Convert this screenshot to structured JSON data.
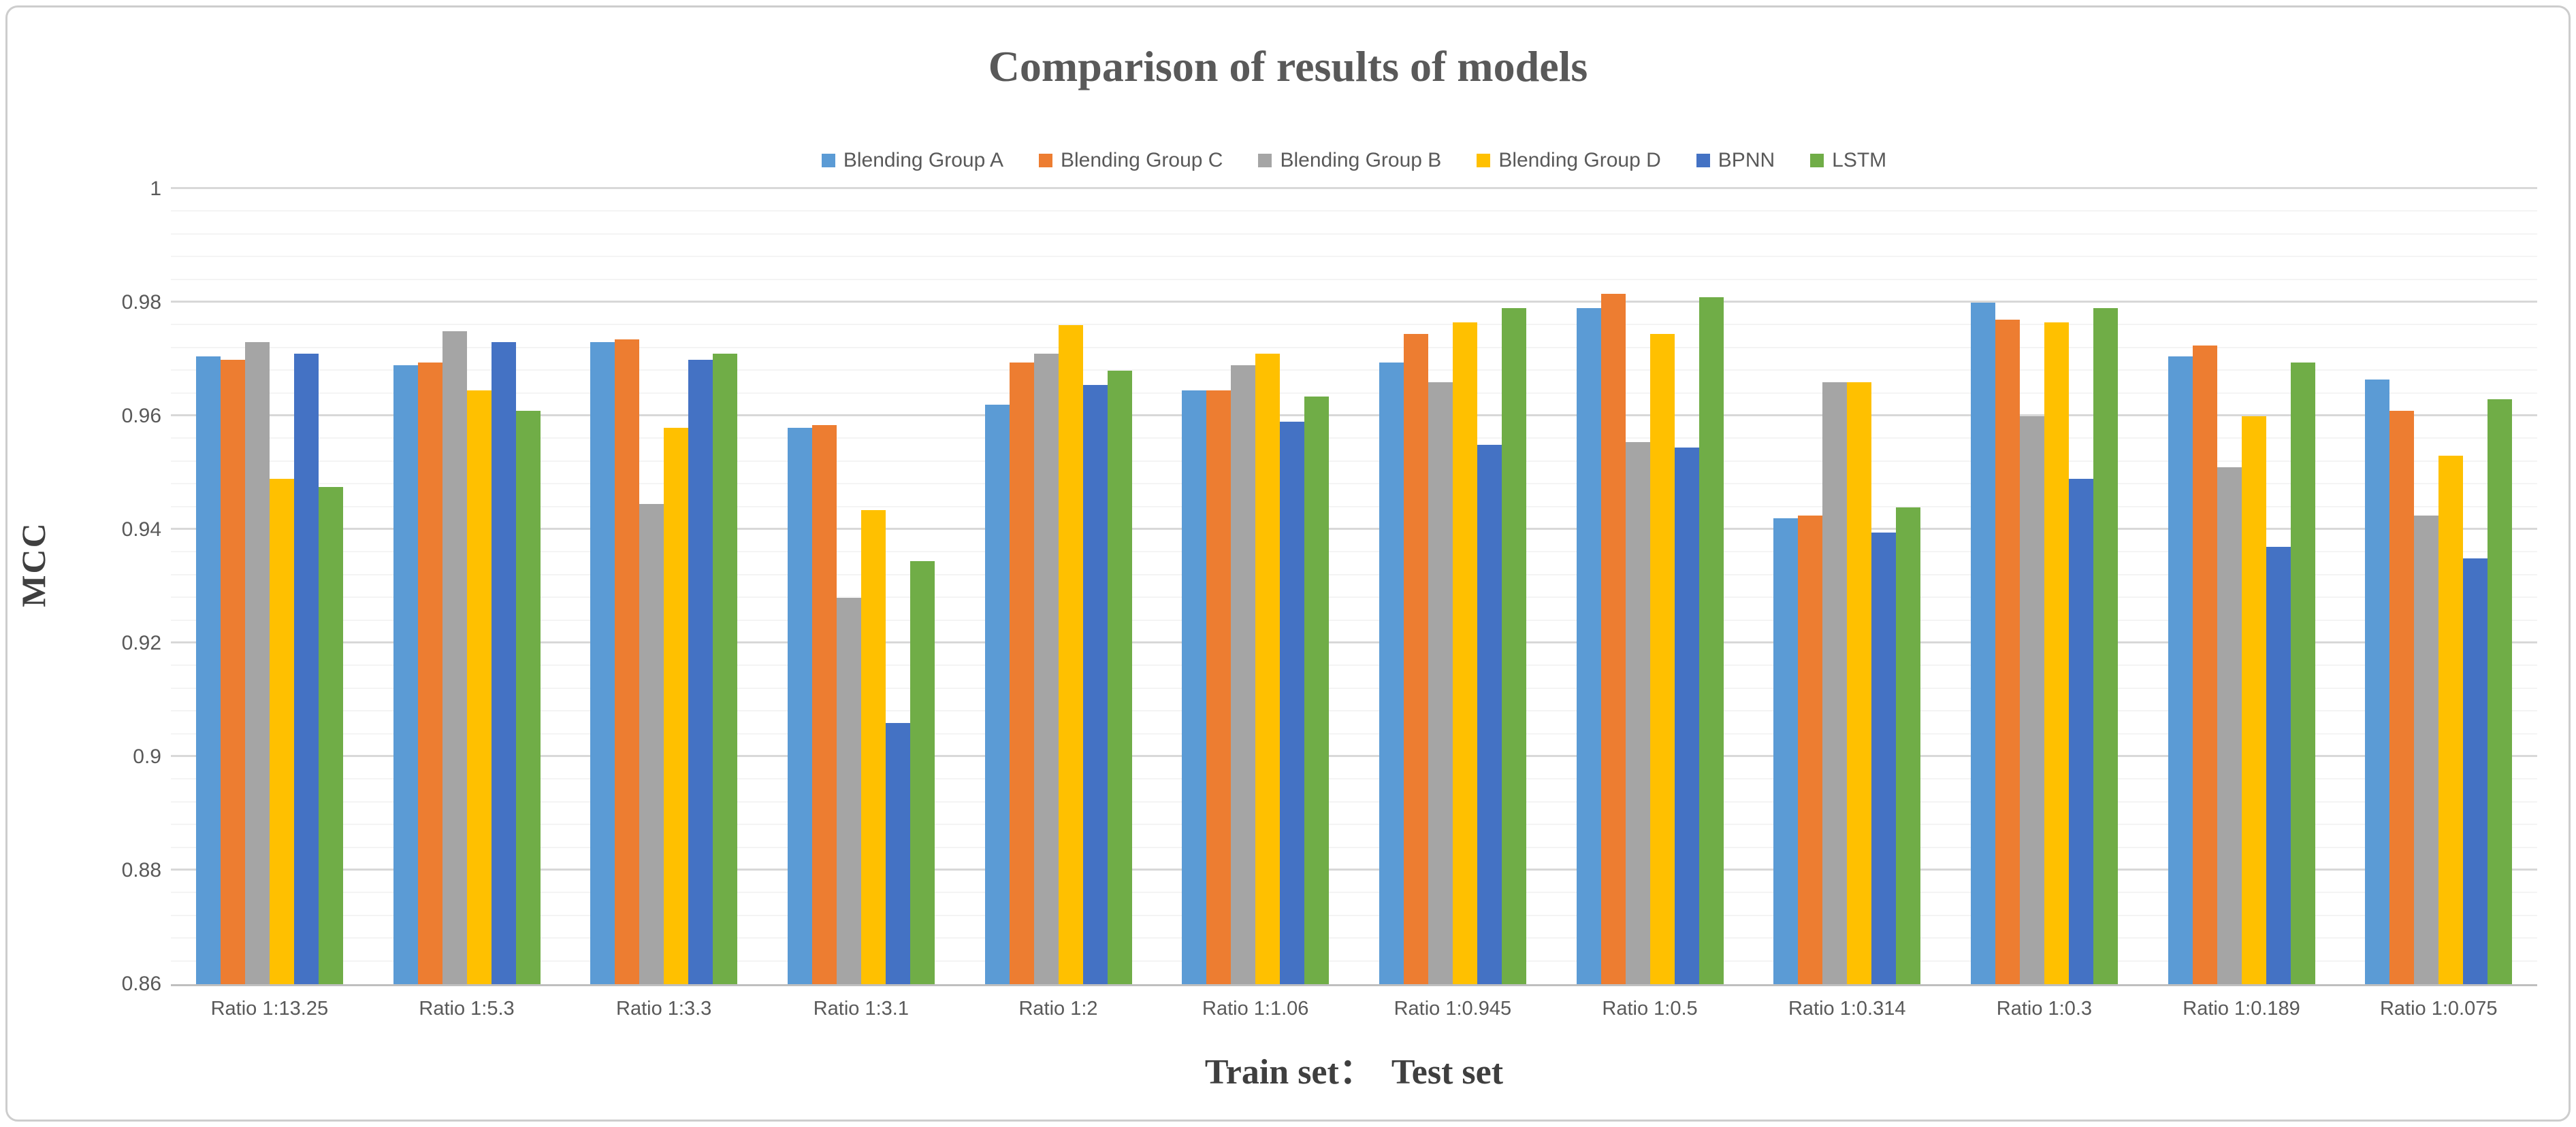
{
  "chart_data": {
    "type": "bar",
    "title": "Comparison of results of models",
    "xlabel": "Train set：  Test set",
    "ylabel": "MCC",
    "ylim": [
      0.86,
      1.0
    ],
    "y_major_unit": 0.02,
    "y_minor_unit": 0.004,
    "grid": "horizontal major+minor gridlines on",
    "legend_position": "top-center",
    "y_ticks": [
      {
        "label": "1",
        "value": 1.0
      },
      {
        "label": "0.98",
        "value": 0.98
      },
      {
        "label": "0.96",
        "value": 0.96
      },
      {
        "label": "0.94",
        "value": 0.94
      },
      {
        "label": "0.92",
        "value": 0.92
      },
      {
        "label": "0.9",
        "value": 0.9
      },
      {
        "label": "0.88",
        "value": 0.88
      },
      {
        "label": "0.86",
        "value": 0.86
      }
    ],
    "categories": [
      "Ratio 1:13.25",
      "Ratio 1:5.3",
      "Ratio 1:3.3",
      "Ratio 1:3.1",
      "Ratio 1:2",
      "Ratio 1:1.06",
      "Ratio 1:0.945",
      "Ratio 1:0.5",
      "Ratio 1:0.314",
      "Ratio 1:0.3",
      "Ratio 1:0.189",
      "Ratio 1:0.075"
    ],
    "series": [
      {
        "name": "Blending Group A",
        "color": "#5B9BD5",
        "values": [
          0.9705,
          0.969,
          0.973,
          0.958,
          0.962,
          0.9645,
          0.9695,
          0.979,
          0.942,
          0.98,
          0.9705,
          0.9665
        ]
      },
      {
        "name": "Blending Group C",
        "color": "#ED7D31",
        "values": [
          0.97,
          0.9695,
          0.9735,
          0.9585,
          0.9695,
          0.9645,
          0.9745,
          0.9815,
          0.9425,
          0.977,
          0.9725,
          0.961
        ]
      },
      {
        "name": "Blending Group B",
        "color": "#A5A5A5",
        "values": [
          0.973,
          0.975,
          0.9445,
          0.928,
          0.971,
          0.969,
          0.966,
          0.9555,
          0.966,
          0.96,
          0.951,
          0.9425
        ]
      },
      {
        "name": "Blending Group D",
        "color": "#FFC000",
        "values": [
          0.949,
          0.9645,
          0.958,
          0.9435,
          0.976,
          0.971,
          0.9765,
          0.9745,
          0.966,
          0.9765,
          0.96,
          0.953
        ]
      },
      {
        "name": "BPNN",
        "color": "#4472C4",
        "values": [
          0.971,
          0.973,
          0.97,
          0.906,
          0.9655,
          0.959,
          0.955,
          0.9545,
          0.9395,
          0.949,
          0.937,
          0.935
        ]
      },
      {
        "name": "LSTM",
        "color": "#70AD47",
        "values": [
          0.9475,
          0.961,
          0.971,
          0.9345,
          0.968,
          0.9635,
          0.979,
          0.981,
          0.944,
          0.979,
          0.9695,
          0.963
        ]
      }
    ]
  }
}
